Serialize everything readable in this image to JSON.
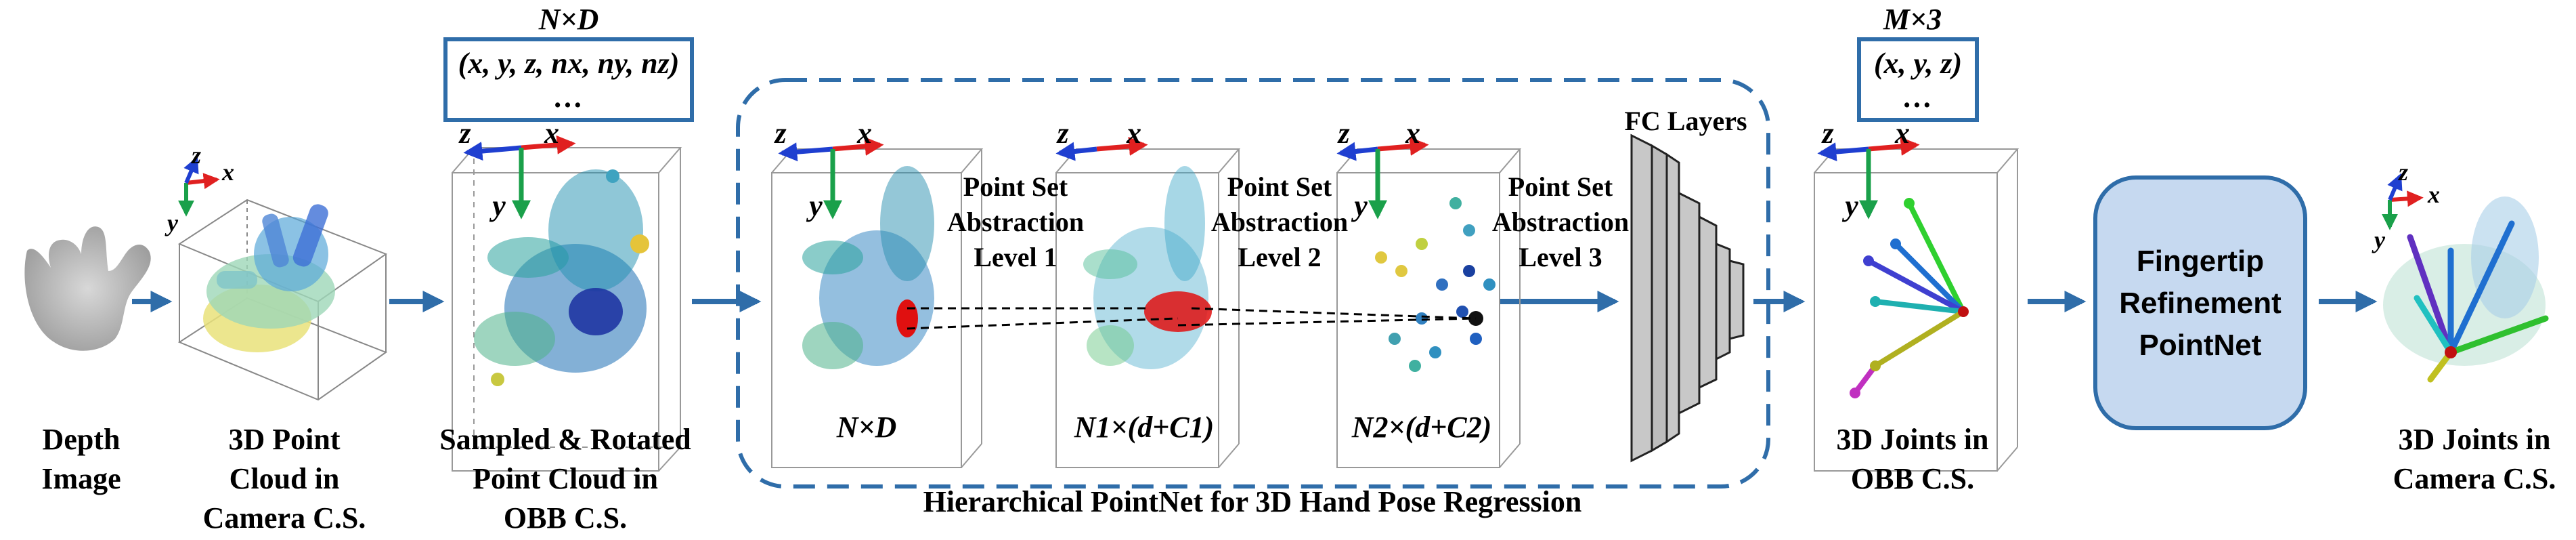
{
  "labels": {
    "depth_image": [
      "Depth",
      "Image"
    ],
    "cloud_camera": [
      "3D Point",
      "Cloud in",
      "Camera C.S."
    ],
    "cloud_obb": [
      "Sampled & Rotated",
      "Point Cloud in",
      "OBB C.S."
    ],
    "joints_obb": [
      "3D Joints in",
      "OBB C.S."
    ],
    "joints_camera": [
      "3D Joints in",
      "Camera C.S."
    ],
    "hierarchical_title": "Hierarchical PointNet for 3D Hand Pose Regression",
    "fc_layers": "FC Layers",
    "refinement": [
      "Fingertip",
      "Refinement",
      "PointNet"
    ]
  },
  "input_box": {
    "title": "N×D",
    "line1": "(x, y, z, nx, ny, nz)",
    "line2": "…"
  },
  "output_box": {
    "title": "M×3",
    "line1": "(x, y, z)",
    "line2": "…"
  },
  "abstraction_levels": [
    {
      "text": [
        "Point Set",
        "Abstraction",
        "Level 1"
      ]
    },
    {
      "text": [
        "Point Set",
        "Abstraction",
        "Level 2"
      ]
    },
    {
      "text": [
        "Point Set",
        "Abstraction",
        "Level 3"
      ]
    }
  ],
  "dims": {
    "level0": "N×D",
    "level1": "N1×(d+C1)",
    "level2": "N2×(d+C2)"
  },
  "axes": {
    "x": "x",
    "y": "y",
    "z": "z"
  },
  "colors": {
    "arrow": "#2f6da9",
    "x_axis": "#e02020",
    "y_axis": "#1aa04a",
    "z_axis": "#1f3fd0",
    "refinement_fill": "#c6d9f0"
  }
}
